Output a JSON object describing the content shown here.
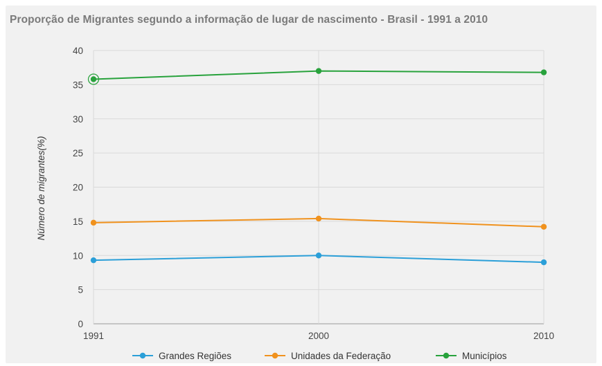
{
  "chart_data": {
    "type": "line",
    "title": "Proporção de Migrantes segundo a informação de lugar de nascimento - Brasil - 1991 a 2010",
    "xlabel": "",
    "ylabel": "Número de migrantes(%)",
    "x": [
      "1991",
      "2000",
      "2010"
    ],
    "ylim": [
      0,
      40
    ],
    "yticks": [
      0,
      5,
      10,
      15,
      20,
      25,
      30,
      35,
      40
    ],
    "grid": true,
    "legend": "bottom",
    "series": [
      {
        "name": "Grandes Regiões",
        "color": "#2b9fd8",
        "values": [
          9.3,
          10.0,
          9.0
        ]
      },
      {
        "name": "Unidades da Federação",
        "color": "#f0921e",
        "values": [
          14.8,
          15.4,
          14.2
        ]
      },
      {
        "name": "Municípios",
        "color": "#28a23c",
        "values": [
          35.8,
          37.0,
          36.8
        ]
      }
    ]
  }
}
